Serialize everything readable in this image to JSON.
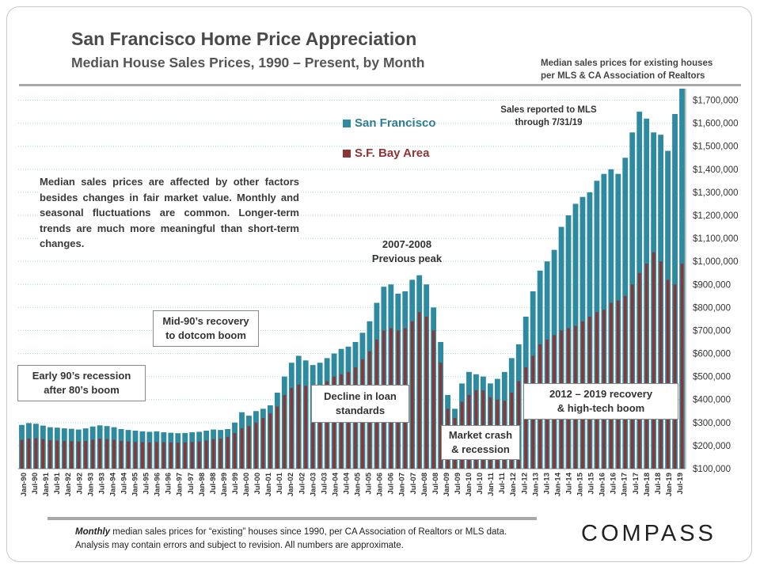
{
  "header": {
    "title": "San Francisco Home Price Appreciation",
    "subtitle": "Median House Sales Prices, 1990 – Present, by Month",
    "source_line1": "Median sales prices for existing houses",
    "source_line2": "per MLS & CA Association  of Realtors"
  },
  "annotations": {
    "reported": [
      "Sales reported to MLS",
      "through 7/31/19"
    ],
    "early90s": [
      "Early 90’s recession",
      "after 80’s boom"
    ],
    "mid90s": [
      "Mid-90’s recovery",
      "to dotcom boom"
    ],
    "peak": [
      "2007-2008",
      "Previous peak"
    ],
    "decline": [
      "Decline in loan",
      "standards"
    ],
    "crash": [
      "Market crash",
      "& recession"
    ],
    "recovery": [
      "2012 – 2019 recovery",
      "& high-tech boom"
    ],
    "explain": "Median sales prices are affected by other factors besides changes in fair market value. Monthly and seasonal fluctuations are common. Longer-term trends are much more meaningful than short-term changes."
  },
  "footer": {
    "italic": "Monthly",
    "text": " median sales prices for “existing” houses since 1990, per CA Association of Realtors or MLS data.  Analysis may contain errors and subject to revision. All numbers are approximate."
  },
  "logo": "COMPASS",
  "colors": {
    "sf": "#2e8a9e",
    "bay": "#8e3434",
    "grid": "#a7dada"
  },
  "chart_data": {
    "type": "bar",
    "y_axis_side": "right",
    "ylim": [
      100000,
      1750000
    ],
    "ytick_values": [
      100000,
      200000,
      300000,
      400000,
      500000,
      600000,
      700000,
      800000,
      900000,
      1000000,
      1100000,
      1200000,
      1300000,
      1400000,
      1500000,
      1600000,
      1700000
    ],
    "ytick_labels": [
      "$100,000",
      "$200,000",
      "$300,000",
      "$400,000",
      "$500,000",
      "$600,000",
      "$700,000",
      "$800,000",
      "$900,000",
      "$1,000,000",
      "$1,100,000",
      "$1,200,000",
      "$1,300,000",
      "$1,400,000",
      "$1,500,000",
      "$1,600,000",
      "$1,700,000"
    ],
    "grid": true,
    "xtick_labels": [
      "Jan-90",
      "Jul-90",
      "Jan-91",
      "Jul-91",
      "Jan-92",
      "Jul-92",
      "Jan-93",
      "Jul-93",
      "Jan-94",
      "Jul-94",
      "Jan-95",
      "Jul-95",
      "Jan-96",
      "Jul-96",
      "Jan-97",
      "Jul-97",
      "Jan-98",
      "Jul-98",
      "Jan-99",
      "Jul-99",
      "Jan-00",
      "Jul-00",
      "Jan-01",
      "Jul-01",
      "Jan-02",
      "Jul-02",
      "Jan-03",
      "Jul-03",
      "Jan-04",
      "Jul-04",
      "Jan-05",
      "Jul-05",
      "Jan-06",
      "Jul-06",
      "Jan-07",
      "Jul-07",
      "Jan-08",
      "Jul-08",
      "Jan-09",
      "Jul-09",
      "Jan-10",
      "Jul-10",
      "Jan-11",
      "Jul-11",
      "Jan-12",
      "Jul-12",
      "Jan-13",
      "Jul-13",
      "Jan-14",
      "Jul-14",
      "Jan-15",
      "Jul-15",
      "Jan-16",
      "Jul-16",
      "Jan-17",
      "Jul-17",
      "Jan-18",
      "Jul-18",
      "Jan-19",
      "Jul-19"
    ],
    "series": [
      {
        "name": "San Francisco",
        "color": "#2e8a9e",
        "values": [
          290000,
          298000,
          295000,
          287000,
          280000,
          278000,
          275000,
          273000,
          270000,
          275000,
          283000,
          288000,
          285000,
          280000,
          272000,
          268000,
          265000,
          262000,
          260000,
          262000,
          258000,
          256000,
          254000,
          255000,
          258000,
          260000,
          265000,
          270000,
          268000,
          272000,
          300000,
          345000,
          330000,
          350000,
          360000,
          375000,
          430000,
          500000,
          560000,
          590000,
          570000,
          550000,
          560000,
          580000,
          600000,
          620000,
          630000,
          650000,
          690000,
          740000,
          820000,
          890000,
          900000,
          860000,
          870000,
          920000,
          940000,
          900000,
          800000,
          650000,
          420000,
          360000,
          470000,
          520000,
          510000,
          500000,
          470000,
          490000,
          520000,
          580000,
          640000,
          760000,
          870000,
          960000,
          1000000,
          1050000,
          1150000,
          1200000,
          1250000,
          1280000,
          1300000,
          1350000,
          1380000,
          1400000,
          1380000,
          1450000,
          1560000,
          1650000,
          1620000,
          1560000,
          1550000,
          1480000,
          1640000,
          1750000
        ]
      },
      {
        "name": "S.F. Bay Area",
        "color": "#8e3434",
        "values": [
          225000,
          230000,
          232000,
          228000,
          224000,
          222000,
          220000,
          219000,
          218000,
          220000,
          226000,
          230000,
          228000,
          225000,
          220000,
          218000,
          216000,
          215000,
          214000,
          216000,
          215000,
          214000,
          213000,
          214000,
          216000,
          218000,
          222000,
          228000,
          230000,
          238000,
          255000,
          275000,
          285000,
          300000,
          320000,
          340000,
          370000,
          420000,
          450000,
          465000,
          460000,
          445000,
          455000,
          480000,
          500000,
          510000,
          520000,
          540000,
          575000,
          610000,
          660000,
          700000,
          710000,
          700000,
          710000,
          740000,
          780000,
          760000,
          700000,
          560000,
          360000,
          320000,
          390000,
          420000,
          440000,
          440000,
          410000,
          400000,
          395000,
          430000,
          480000,
          540000,
          590000,
          640000,
          660000,
          680000,
          700000,
          710000,
          720000,
          740000,
          760000,
          780000,
          790000,
          820000,
          830000,
          850000,
          900000,
          950000,
          990000,
          1040000,
          1000000,
          920000,
          900000,
          990000
        ]
      }
    ]
  }
}
